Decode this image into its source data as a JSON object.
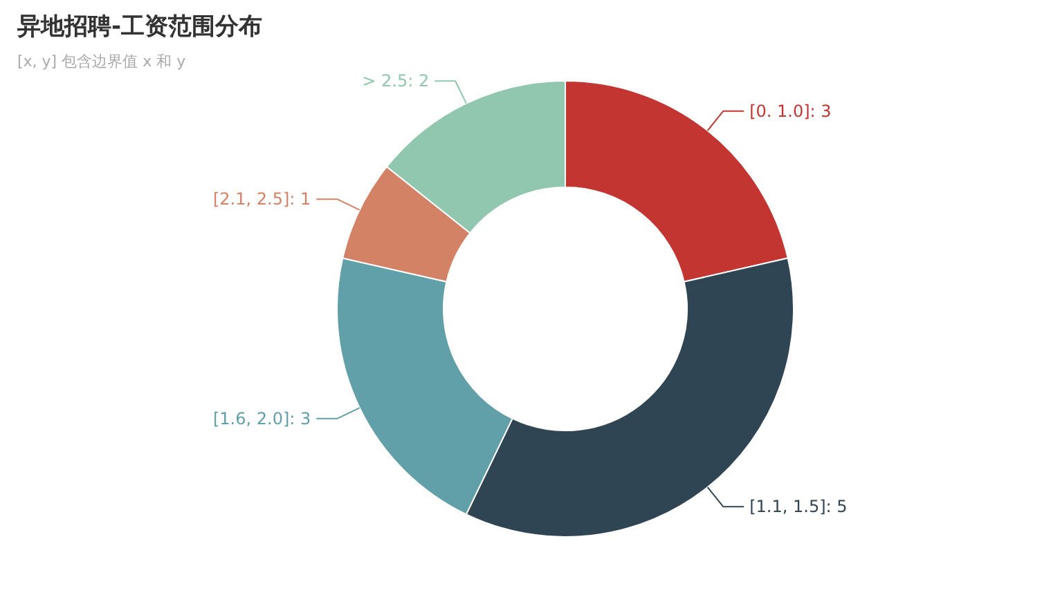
{
  "chart_data": {
    "type": "donut",
    "title": "异地招聘-工资范围分布",
    "subtitle": "[x, y] 包含边界值 x 和 y",
    "categories": [
      "[0. 1.0]",
      "[1.1, 1.5]",
      "[1.6, 2.0]",
      "[2.1, 2.5]",
      "> 2.5"
    ],
    "values": [
      3,
      5,
      3,
      1,
      2
    ],
    "colors": [
      "#c23531",
      "#2f4554",
      "#61a0a8",
      "#d48265",
      "#91c7ae"
    ],
    "value_labels": [
      ": 3",
      ": 5",
      ": 3",
      ": 1",
      ": 2"
    ]
  }
}
